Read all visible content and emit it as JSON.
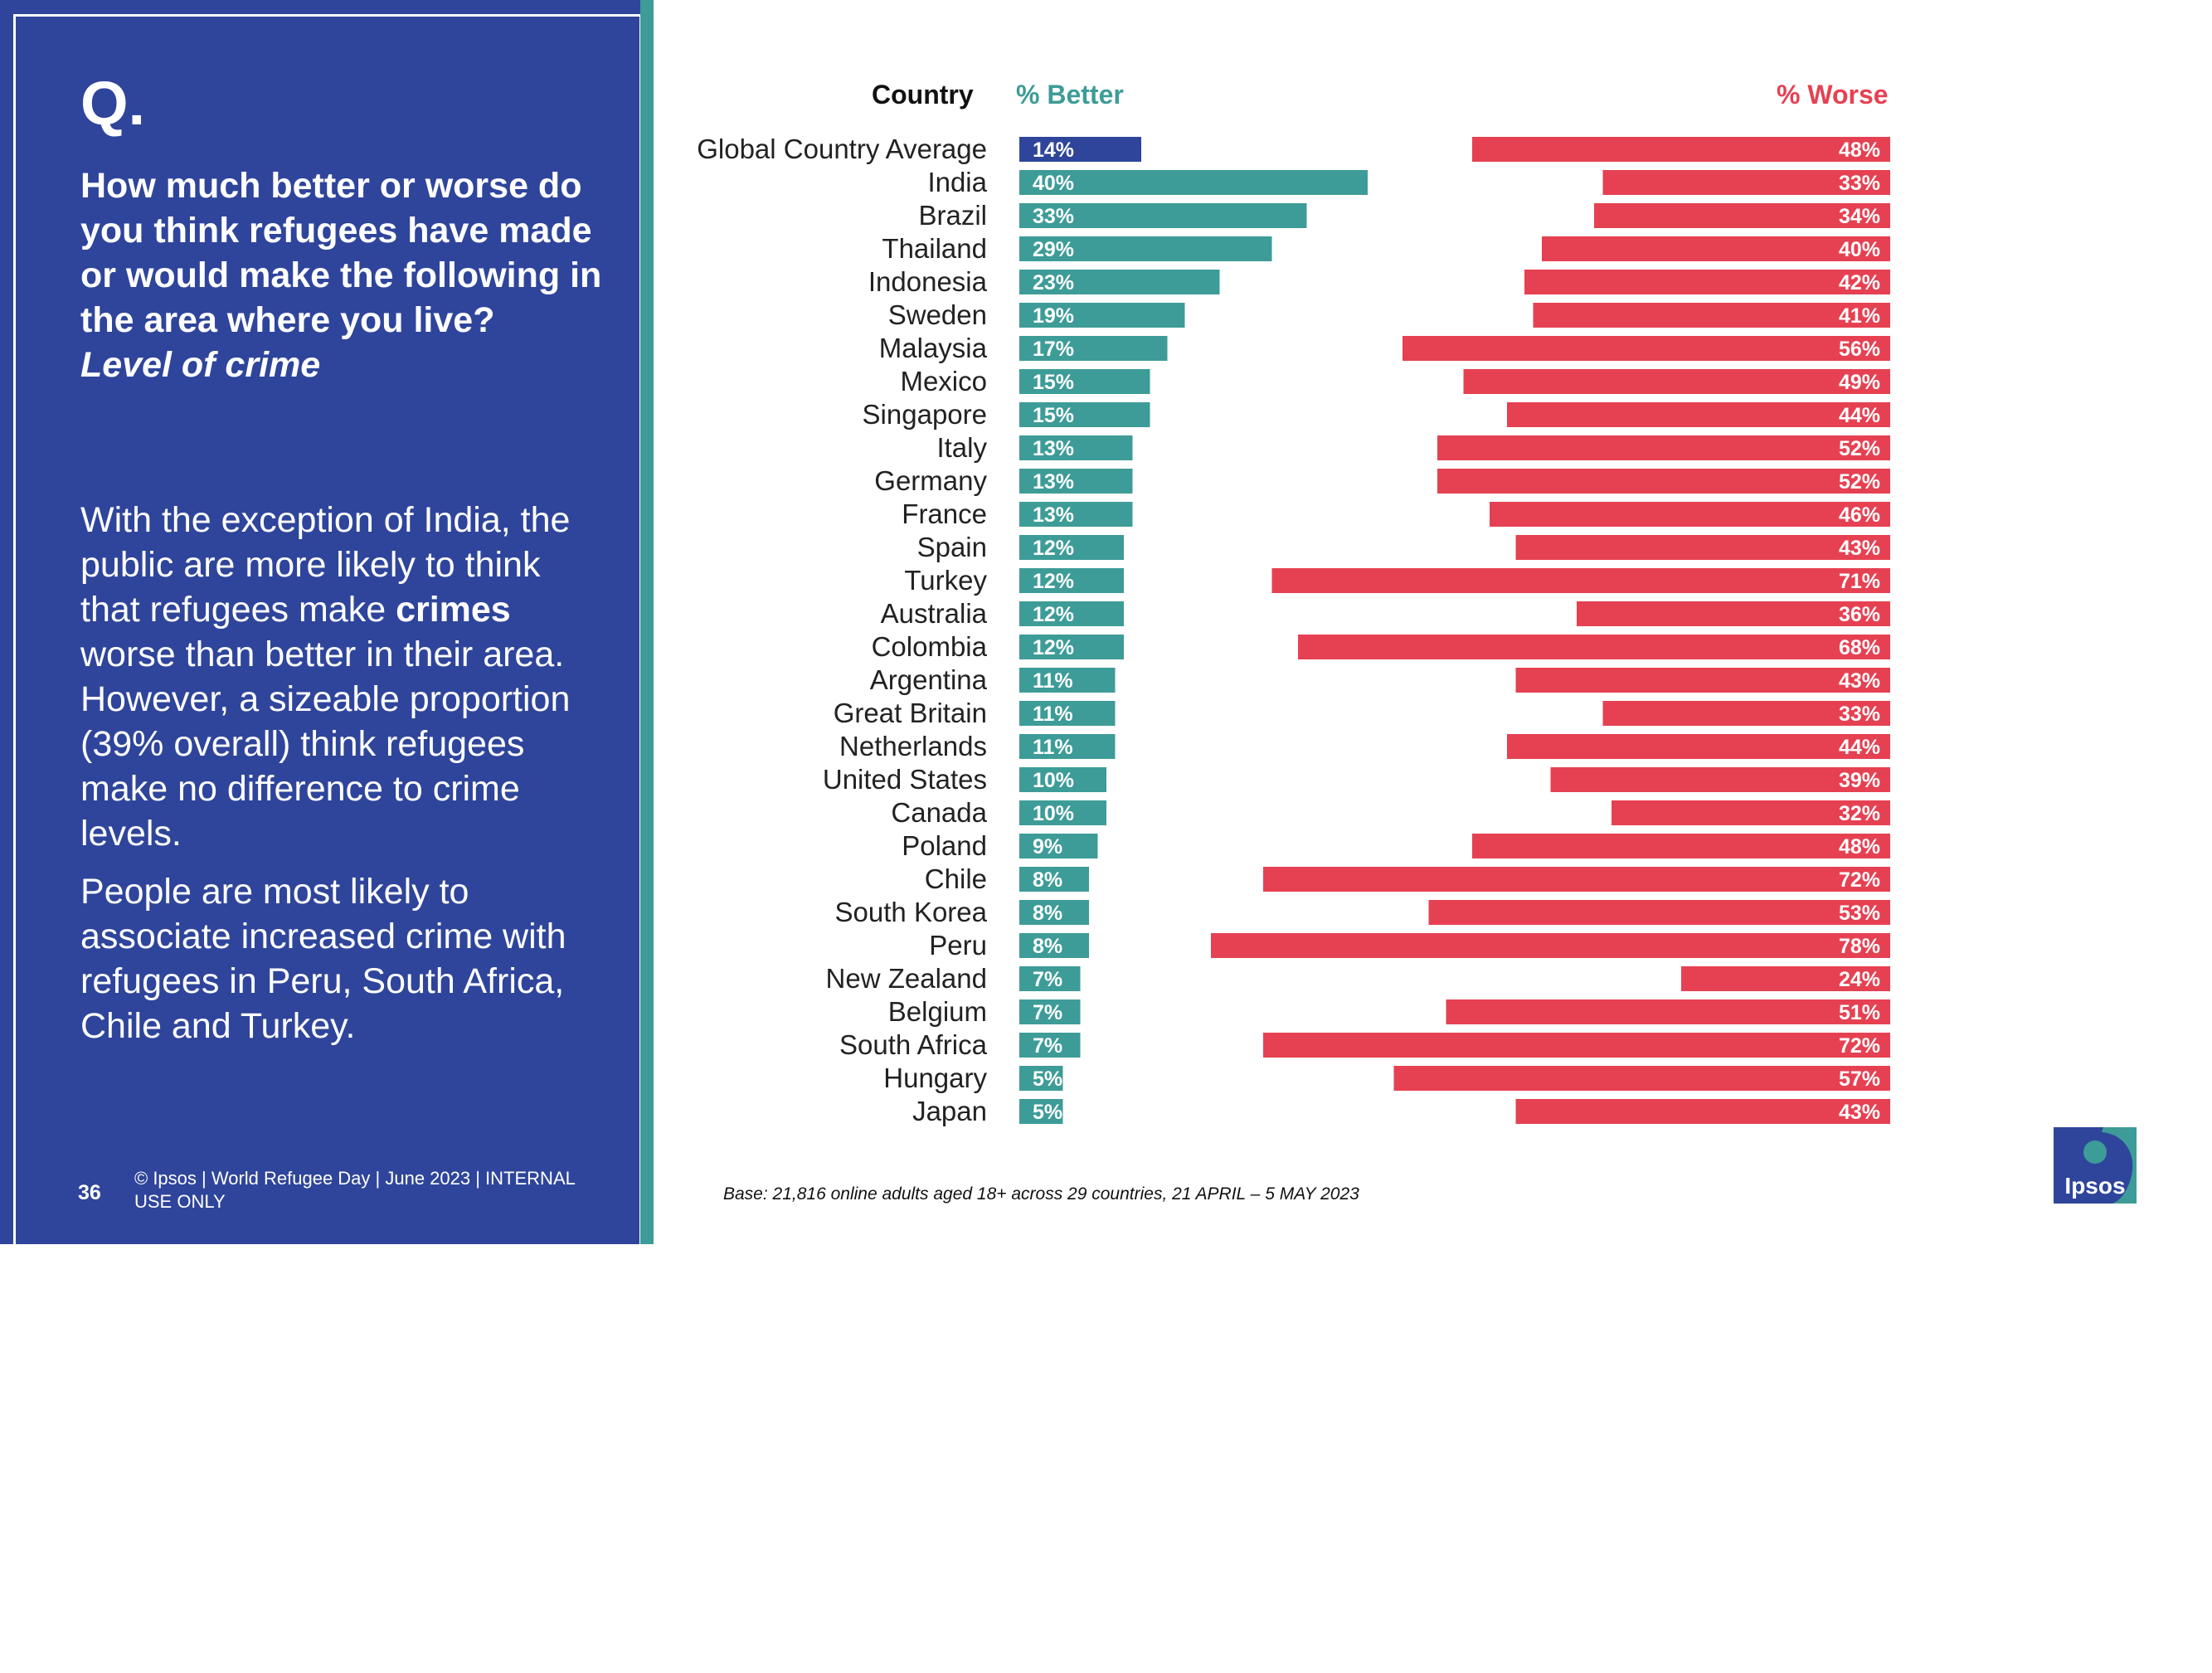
{
  "left_panel": {
    "q_mark": "Q.",
    "question": "How much better or worse do you think refugees have made or would make the following in the area where you live?",
    "sub_question": "Level of crime",
    "para1_a": "With the exception of India, the public are more likely to think that refugees make ",
    "para1_bold": "crimes",
    "para1_b": " worse than better in their area.  However, a sizeable proportion (39% overall) think refugees make no difference to crime levels.",
    "para2": "People are most likely to associate increased crime with refugees in Peru, South Africa, Chile and Turkey.",
    "page_number": "36",
    "footer": "© Ipsos | World Refugee Day | June 2023 | INTERNAL USE ONLY"
  },
  "headers": {
    "country": "Country",
    "better": "% Better",
    "worse": "% Worse"
  },
  "base_note": "Base: 21,816 online adults aged 18+ across 29 countries,  21 APRIL – 5 MAY 2023",
  "logo_text": "Ipsos",
  "colors": {
    "panel": "#2f459b",
    "teal": "#3d9c97",
    "red": "#e64152",
    "global_bar": "#2f459b"
  },
  "chart_data": {
    "type": "bar",
    "title": "Level of crime",
    "categories": [
      "Global Country Average",
      "India",
      "Brazil",
      "Thailand",
      "Indonesia",
      "Sweden",
      "Malaysia",
      "Mexico",
      "Singapore",
      "Italy",
      "Germany",
      "France",
      "Spain",
      "Turkey",
      "Australia",
      "Colombia",
      "Argentina",
      "Great Britain",
      "Netherlands",
      "United States",
      "Canada",
      "Poland",
      "Chile",
      "South Korea",
      "Peru",
      "New Zealand",
      "Belgium",
      "South Africa",
      "Hungary",
      "Japan"
    ],
    "series": [
      {
        "name": "% Better",
        "values": [
          14,
          40,
          33,
          29,
          23,
          19,
          17,
          15,
          15,
          13,
          13,
          13,
          12,
          12,
          12,
          12,
          11,
          11,
          11,
          10,
          10,
          9,
          8,
          8,
          8,
          7,
          7,
          7,
          5,
          5
        ]
      },
      {
        "name": "% Worse",
        "values": [
          48,
          33,
          34,
          40,
          42,
          41,
          56,
          49,
          44,
          52,
          52,
          46,
          43,
          71,
          36,
          68,
          43,
          33,
          44,
          39,
          32,
          48,
          72,
          53,
          78,
          24,
          51,
          72,
          57,
          43
        ]
      }
    ],
    "xlabel": "",
    "ylabel": "Country",
    "xlim": [
      0,
      100
    ]
  }
}
